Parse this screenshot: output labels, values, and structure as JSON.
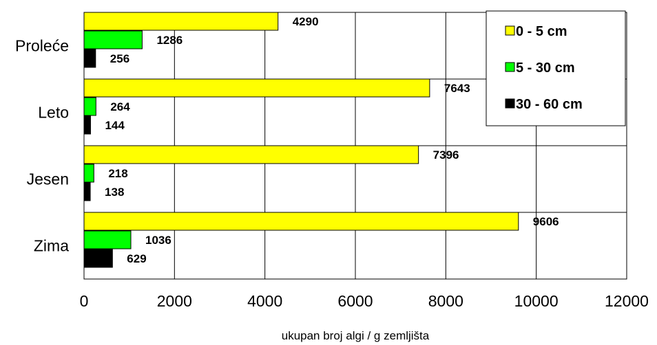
{
  "chart_data": {
    "type": "bar",
    "orientation": "horizontal",
    "categories": [
      "Proleće",
      "Leto",
      "Jesen",
      "Zima"
    ],
    "series": [
      {
        "name": "0 - 5 cm",
        "values": [
          4290,
          7643,
          7396,
          9606
        ],
        "color": "#ffff00"
      },
      {
        "name": "5 - 30 cm",
        "values": [
          1286,
          264,
          218,
          1036
        ],
        "color": "#00ff00"
      },
      {
        "name": "30 - 60 cm",
        "values": [
          256,
          144,
          138,
          629
        ],
        "color": "#000000"
      }
    ],
    "xlim": [
      0,
      12000
    ],
    "xticks": [
      0,
      2000,
      4000,
      6000,
      8000,
      10000,
      12000
    ],
    "xlabel": "ukupan broj algi  / g zemljišta",
    "ylabel": "",
    "title": "",
    "grid": true,
    "legend_position": "top-right"
  }
}
